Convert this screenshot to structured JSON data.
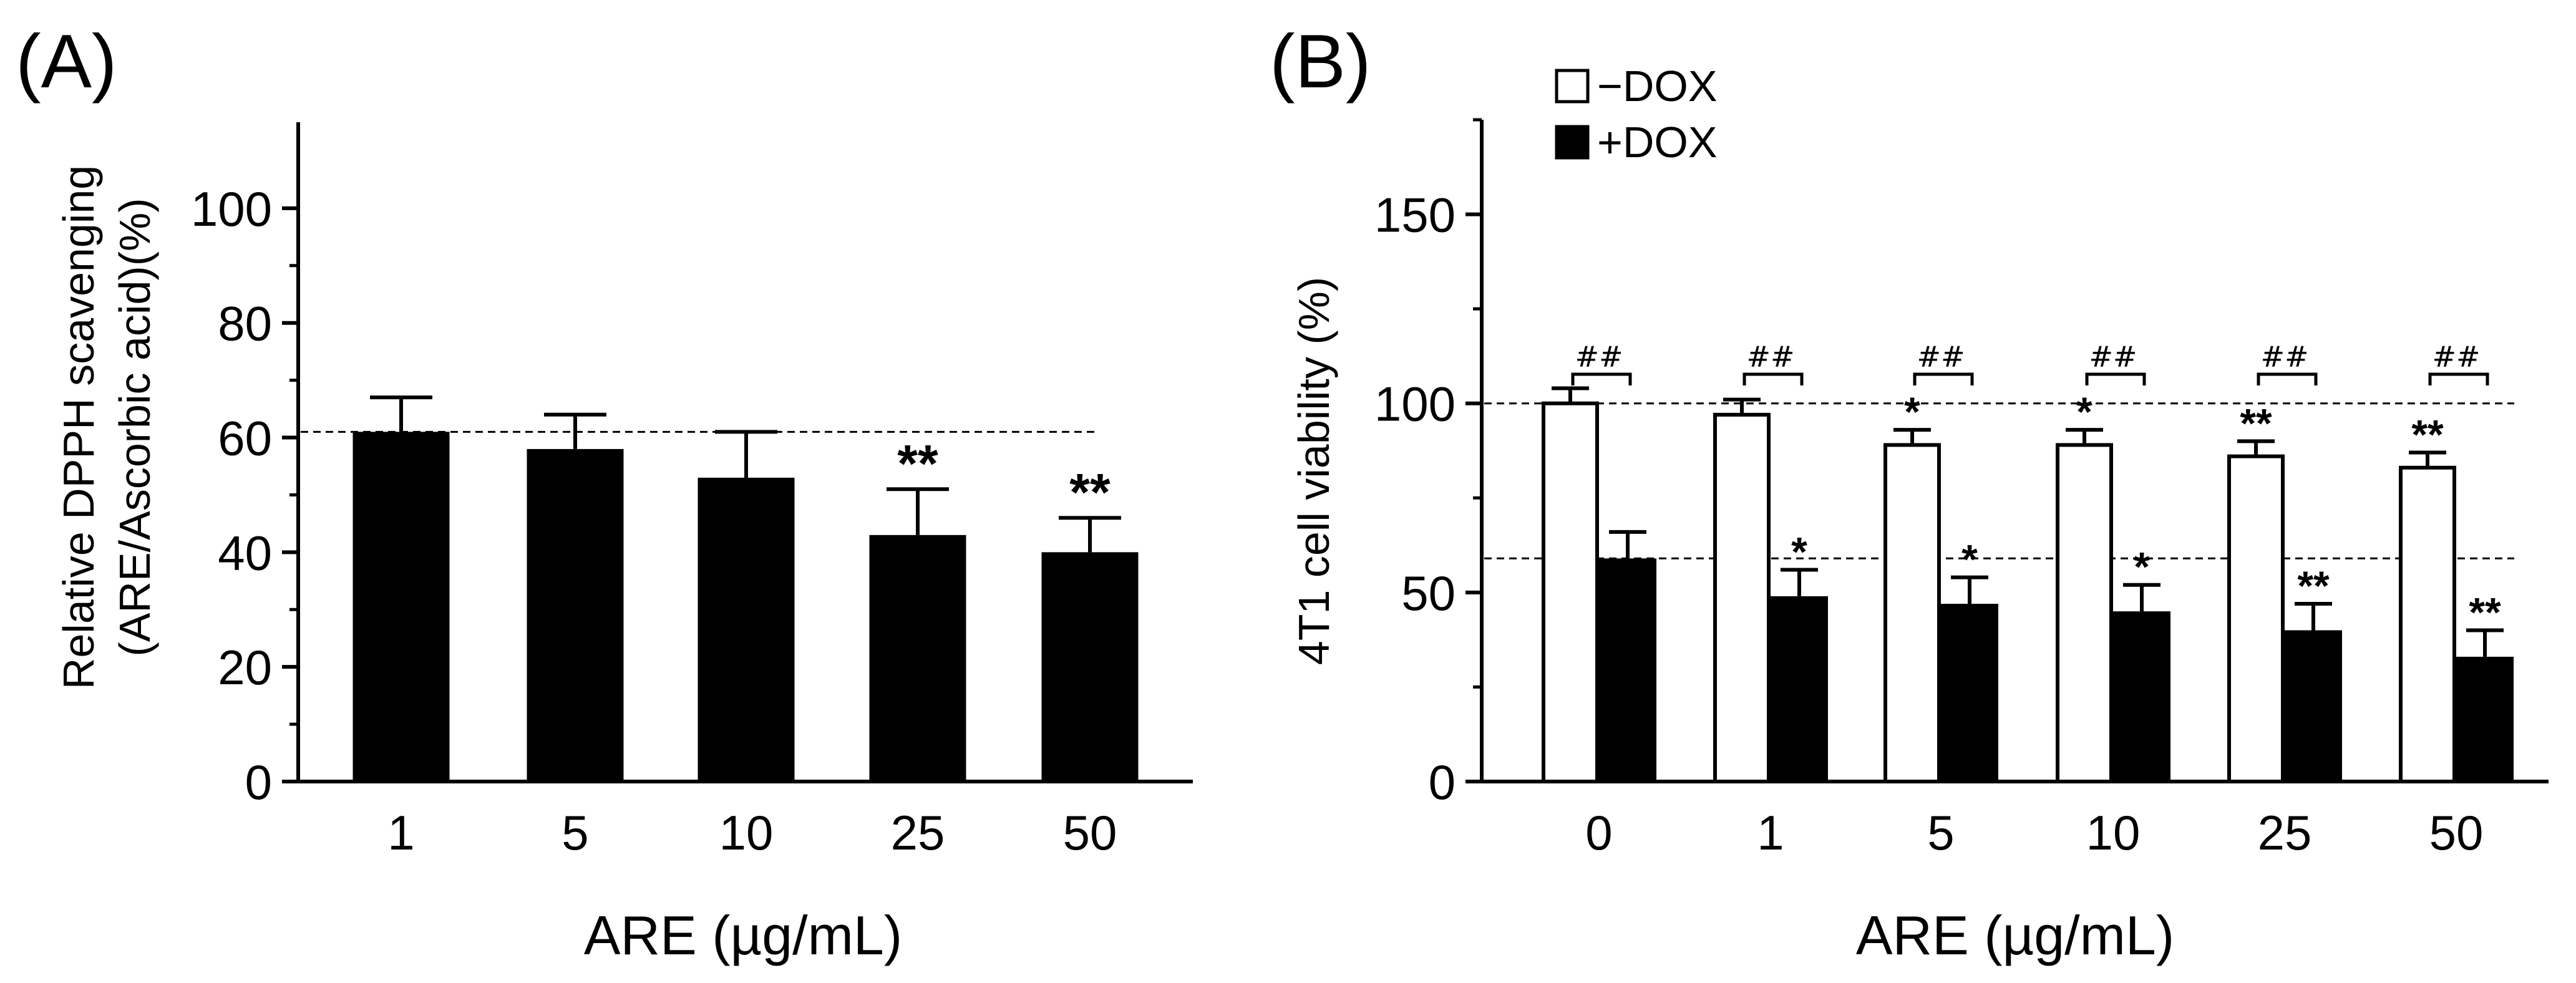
{
  "chart_data": [
    {
      "panel": "(A)",
      "type": "bar",
      "categories": [
        "1",
        "5",
        "10",
        "25",
        "50"
      ],
      "values": [
        61,
        58,
        53,
        43,
        40
      ],
      "errors": [
        6,
        6,
        8,
        8,
        6
      ],
      "significance": [
        "",
        "",
        "",
        "**",
        "**"
      ],
      "reference_line": 61,
      "ylabel_line1": "Relative DPPH scavenging",
      "ylabel_line2": "(ARE/Ascorbic acid)(%)",
      "xlabel": "ARE (µg/mL)",
      "ylim": [
        0,
        115
      ],
      "yticks": [
        0,
        20,
        40,
        60,
        80,
        100
      ],
      "bar_color": "#000000"
    },
    {
      "panel": "(B)",
      "type": "bar",
      "categories": [
        "0",
        "1",
        "5",
        "10",
        "25",
        "50"
      ],
      "series": [
        {
          "name": "−DOX",
          "values": [
            100,
            97,
            89,
            89,
            86,
            83
          ],
          "errors": [
            4,
            4,
            4,
            4,
            4,
            4
          ],
          "significance": [
            "",
            "",
            "*",
            "*",
            "**",
            "**"
          ],
          "color": "#ffffff"
        },
        {
          "name": "+DOX",
          "values": [
            59,
            49,
            47,
            45,
            40,
            33
          ],
          "errors": [
            7,
            7,
            7,
            7,
            7,
            7
          ],
          "significance": [
            "",
            "*",
            "*",
            "*",
            "**",
            "**"
          ],
          "color": "#000000"
        }
      ],
      "pair_significance": [
        "##",
        "##",
        "##",
        "##",
        "##",
        "##"
      ],
      "reference_lines": [
        100,
        59
      ],
      "ylabel": "4T1 cell viability (%)",
      "xlabel": "ARE (µg/mL)",
      "ylim": [
        0,
        175
      ],
      "yticks": [
        0,
        50,
        100,
        150
      ],
      "legend_position": "top-left"
    }
  ]
}
